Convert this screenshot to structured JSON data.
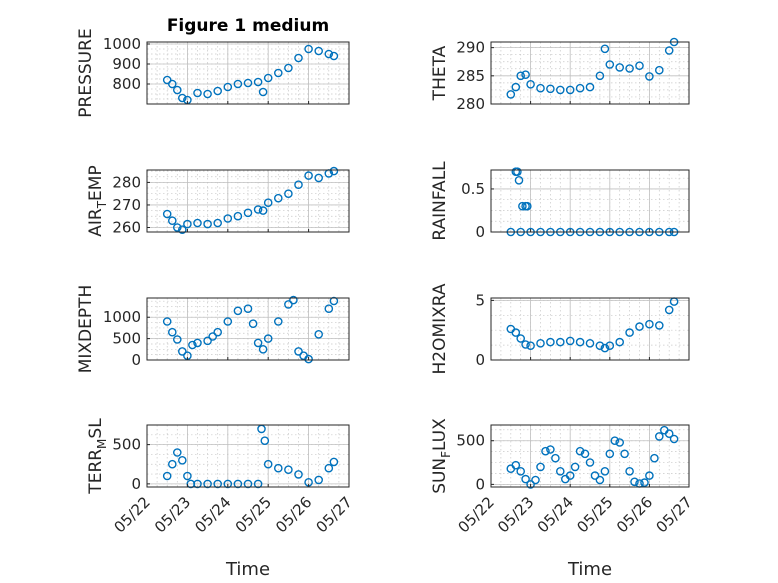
{
  "chart_data": [
    {
      "type": "scatter",
      "title": "Figure 1 medium",
      "ylabel": "PRESSURE",
      "ylim": [
        700,
        1010
      ],
      "yticks": [
        "800",
        "900",
        "1000"
      ],
      "ytick_values": [
        800,
        900,
        1000
      ],
      "xlim": [
        "05/22",
        "05/27"
      ],
      "marker": "circle",
      "series": [
        {
          "x": [
            "05/22 12:00",
            "05/22 15:00",
            "05/22 18:00",
            "05/22 21:00",
            "05/23 00:00",
            "05/23 06:00",
            "05/23 12:00",
            "05/23 18:00",
            "05/24 00:00",
            "05/24 06:00",
            "05/24 12:00",
            "05/24 18:00",
            "05/24 21:00",
            "05/25 00:00",
            "05/25 06:00",
            "05/25 12:00",
            "05/25 18:00",
            "05/26 00:00",
            "05/26 06:00",
            "05/26 12:00",
            "05/26 15:00"
          ],
          "values": [
            820,
            800,
            770,
            730,
            720,
            755,
            750,
            765,
            785,
            800,
            805,
            810,
            760,
            830,
            855,
            880,
            930,
            975,
            965,
            950,
            940
          ]
        }
      ]
    },
    {
      "type": "scatter",
      "ylabel": "THETA",
      "ylim": [
        280,
        291
      ],
      "yticks": [
        "280",
        "285",
        "290"
      ],
      "ytick_values": [
        280,
        285,
        290
      ],
      "xlim": [
        "05/22",
        "05/27"
      ],
      "marker": "circle",
      "series": [
        {
          "x": [
            "05/22 12:00",
            "05/22 15:00",
            "05/22 18:00",
            "05/22 21:00",
            "05/23 00:00",
            "05/23 06:00",
            "05/23 12:00",
            "05/23 18:00",
            "05/24 00:00",
            "05/24 06:00",
            "05/24 12:00",
            "05/24 18:00",
            "05/24 21:00",
            "05/25 00:00",
            "05/25 06:00",
            "05/25 12:00",
            "05/25 18:00",
            "05/26 00:00",
            "05/26 06:00",
            "05/26 12:00",
            "05/26 15:00"
          ],
          "values": [
            281.7,
            283,
            285,
            285.2,
            283.5,
            282.8,
            282.7,
            282.5,
            282.5,
            282.8,
            283,
            285,
            289.8,
            287,
            286.5,
            286.3,
            286.8,
            284.9,
            286,
            289.5,
            291
          ]
        }
      ]
    },
    {
      "type": "scatter",
      "ylabel": "AIR_TEMP",
      "ylabel_main": "AIR",
      "ylabel_sub": "T",
      "ylabel_rest": "EMP",
      "ylim": [
        258,
        285.5
      ],
      "yticks": [
        "260",
        "270",
        "280"
      ],
      "ytick_values": [
        260,
        270,
        280
      ],
      "xlim": [
        "05/22",
        "05/27"
      ],
      "marker": "circle",
      "series": [
        {
          "x": [
            "05/22 12:00",
            "05/22 15:00",
            "05/22 18:00",
            "05/22 21:00",
            "05/23 00:00",
            "05/23 06:00",
            "05/23 12:00",
            "05/23 18:00",
            "05/24 00:00",
            "05/24 06:00",
            "05/24 12:00",
            "05/24 18:00",
            "05/24 21:00",
            "05/25 00:00",
            "05/25 06:00",
            "05/25 12:00",
            "05/25 18:00",
            "05/26 00:00",
            "05/26 06:00",
            "05/26 12:00",
            "05/26 15:00"
          ],
          "values": [
            266,
            263,
            260,
            259,
            261.5,
            262,
            261.5,
            262,
            264,
            265,
            266.5,
            268,
            267.5,
            271,
            273,
            275,
            279,
            283,
            282,
            284,
            285
          ]
        }
      ]
    },
    {
      "type": "scatter",
      "ylabel": "RAINFALL",
      "ylim": [
        0,
        0.72
      ],
      "yticks": [
        "0",
        "0.5"
      ],
      "ytick_values": [
        0,
        0.5
      ],
      "xlim": [
        "05/22",
        "05/27"
      ],
      "marker": "circle",
      "series": [
        {
          "x": [
            "05/22 12:00",
            "05/22 15:00",
            "05/22 16:00",
            "05/22 17:00",
            "05/22 18:00",
            "05/22 19:00",
            "05/22 21:00",
            "05/22 22:00",
            "05/23 00:00",
            "05/23 06:00",
            "05/23 12:00",
            "05/23 18:00",
            "05/24 00:00",
            "05/24 06:00",
            "05/24 12:00",
            "05/24 18:00",
            "05/25 00:00",
            "05/25 06:00",
            "05/25 12:00",
            "05/25 18:00",
            "05/26 00:00",
            "05/26 06:00",
            "05/26 12:00",
            "05/26 15:00"
          ],
          "values": [
            0,
            0.7,
            0.7,
            0.6,
            0,
            0.3,
            0.3,
            0.3,
            0,
            0,
            0,
            0,
            0,
            0,
            0,
            0,
            0,
            0,
            0,
            0,
            0,
            0,
            0,
            0
          ]
        }
      ]
    },
    {
      "type": "scatter",
      "ylabel": "MIXDEPTH",
      "ylim": [
        0,
        1450
      ],
      "yticks": [
        "0",
        "500",
        "1000"
      ],
      "ytick_values": [
        0,
        500,
        1000
      ],
      "xlim": [
        "05/22",
        "05/27"
      ],
      "marker": "circle",
      "series": [
        {
          "x": [
            "05/22 12:00",
            "05/22 15:00",
            "05/22 18:00",
            "05/22 21:00",
            "05/23 00:00",
            "05/23 03:00",
            "05/23 06:00",
            "05/23 12:00",
            "05/23 15:00",
            "05/23 18:00",
            "05/24 00:00",
            "05/24 06:00",
            "05/24 12:00",
            "05/24 15:00",
            "05/24 18:00",
            "05/24 21:00",
            "05/25 00:00",
            "05/25 06:00",
            "05/25 12:00",
            "05/25 15:00",
            "05/25 18:00",
            "05/25 21:00",
            "05/26 00:00",
            "05/26 06:00",
            "05/26 12:00",
            "05/26 15:00"
          ],
          "values": [
            900,
            650,
            480,
            200,
            100,
            350,
            400,
            450,
            550,
            650,
            900,
            1150,
            1200,
            850,
            400,
            250,
            500,
            900,
            1300,
            1400,
            200,
            100,
            20,
            600,
            1200,
            1380
          ]
        }
      ]
    },
    {
      "type": "scatter",
      "ylabel": "H2OMIXRA",
      "ylim": [
        0,
        5.2
      ],
      "yticks": [
        "0",
        "5"
      ],
      "ytick_values": [
        0,
        5
      ],
      "xlim": [
        "05/22",
        "05/27"
      ],
      "marker": "circle",
      "series": [
        {
          "x": [
            "05/22 12:00",
            "05/22 15:00",
            "05/22 18:00",
            "05/22 21:00",
            "05/23 00:00",
            "05/23 06:00",
            "05/23 12:00",
            "05/23 18:00",
            "05/24 00:00",
            "05/24 06:00",
            "05/24 12:00",
            "05/24 18:00",
            "05/24 21:00",
            "05/25 00:00",
            "05/25 06:00",
            "05/25 12:00",
            "05/25 18:00",
            "05/26 00:00",
            "05/26 06:00",
            "05/26 12:00",
            "05/26 15:00"
          ],
          "values": [
            2.6,
            2.3,
            1.8,
            1.3,
            1.2,
            1.4,
            1.5,
            1.5,
            1.6,
            1.5,
            1.4,
            1.2,
            1.0,
            1.2,
            1.5,
            2.3,
            2.8,
            3.0,
            2.9,
            4.2,
            4.9
          ]
        }
      ]
    },
    {
      "type": "scatter",
      "ylabel": "TERR_MSL",
      "ylabel_main": "TERR",
      "ylabel_sub": "M",
      "ylabel_rest": "SL",
      "ylim": [
        -40,
        750
      ],
      "yticks": [
        "0",
        "500"
      ],
      "ytick_values": [
        0,
        500
      ],
      "xlim": [
        "05/22",
        "05/27"
      ],
      "marker": "circle",
      "series": [
        {
          "x": [
            "05/22 12:00",
            "05/22 15:00",
            "05/22 18:00",
            "05/22 21:00",
            "05/23 00:00",
            "05/23 02:00",
            "05/23 06:00",
            "05/23 12:00",
            "05/23 18:00",
            "05/24 00:00",
            "05/24 06:00",
            "05/24 12:00",
            "05/24 18:00",
            "05/24 20:00",
            "05/24 22:00",
            "05/25 00:00",
            "05/25 06:00",
            "05/25 12:00",
            "05/25 18:00",
            "05/26 00:00",
            "05/26 06:00",
            "05/26 12:00",
            "05/26 15:00"
          ],
          "values": [
            100,
            250,
            400,
            300,
            100,
            0,
            0,
            0,
            0,
            0,
            0,
            0,
            0,
            700,
            550,
            250,
            200,
            180,
            120,
            20,
            50,
            200,
            280
          ]
        }
      ]
    },
    {
      "type": "scatter",
      "ylabel": "SUN_FLUX",
      "ylabel_main": "SUN",
      "ylabel_sub": "F",
      "ylabel_rest": "LUX",
      "ylim": [
        -30,
        680
      ],
      "yticks": [
        "0",
        "500"
      ],
      "ytick_values": [
        0,
        500
      ],
      "xlim": [
        "05/22",
        "05/27"
      ],
      "marker": "circle",
      "series": [
        {
          "x": [
            "05/22 12:00",
            "05/22 15:00",
            "05/22 18:00",
            "05/22 21:00",
            "05/23 00:00",
            "05/23 03:00",
            "05/23 06:00",
            "05/23 09:00",
            "05/23 12:00",
            "05/23 15:00",
            "05/23 18:00",
            "05/23 21:00",
            "05/24 00:00",
            "05/24 03:00",
            "05/24 06:00",
            "05/24 09:00",
            "05/24 12:00",
            "05/24 15:00",
            "05/24 18:00",
            "05/24 21:00",
            "05/25 00:00",
            "05/25 03:00",
            "05/25 06:00",
            "05/25 09:00",
            "05/25 12:00",
            "05/25 15:00",
            "05/25 18:00",
            "05/25 21:00",
            "05/26 00:00",
            "05/26 03:00",
            "05/26 06:00",
            "05/26 09:00",
            "05/26 12:00",
            "05/26 15:00"
          ],
          "values": [
            180,
            220,
            150,
            60,
            0,
            50,
            200,
            380,
            400,
            300,
            150,
            60,
            100,
            200,
            380,
            350,
            250,
            100,
            50,
            150,
            350,
            500,
            480,
            350,
            150,
            30,
            10,
            20,
            100,
            300,
            550,
            620,
            580,
            520
          ]
        }
      ]
    }
  ],
  "axes": {
    "xticks": [
      "05/22",
      "05/23",
      "05/24",
      "05/25",
      "05/26",
      "05/27"
    ],
    "xlabel": "Time"
  }
}
